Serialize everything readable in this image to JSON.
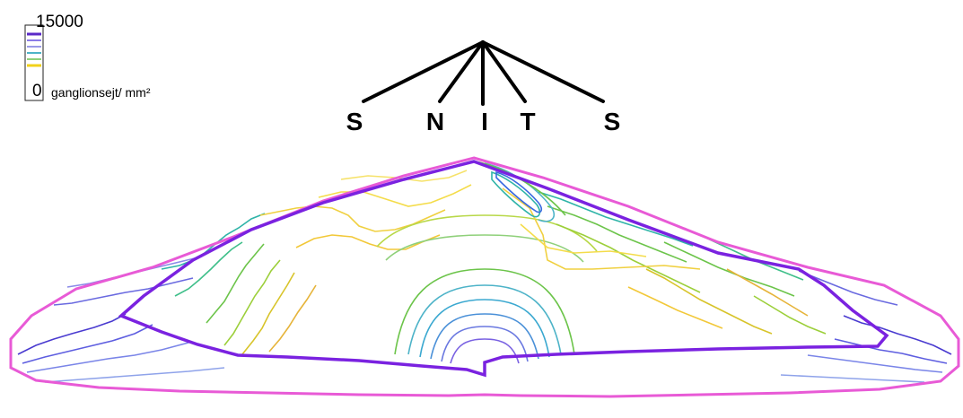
{
  "legend": {
    "max_label": "15000",
    "min_label": "0",
    "unit_label": "ganglionsejt/ mm²",
    "scale_colors": [
      "#ffffff",
      "#6a2fd6",
      "#8a7be8",
      "#4db3c8",
      "#6cc44a",
      "#f2d21a",
      "#ffffff"
    ]
  },
  "directions": [
    "S",
    "N",
    "I",
    "T",
    "S"
  ],
  "colors": {
    "outer_boundary": "#e85ad6",
    "inner_boundary": "#7a22e0",
    "spokes": "#000000"
  }
}
